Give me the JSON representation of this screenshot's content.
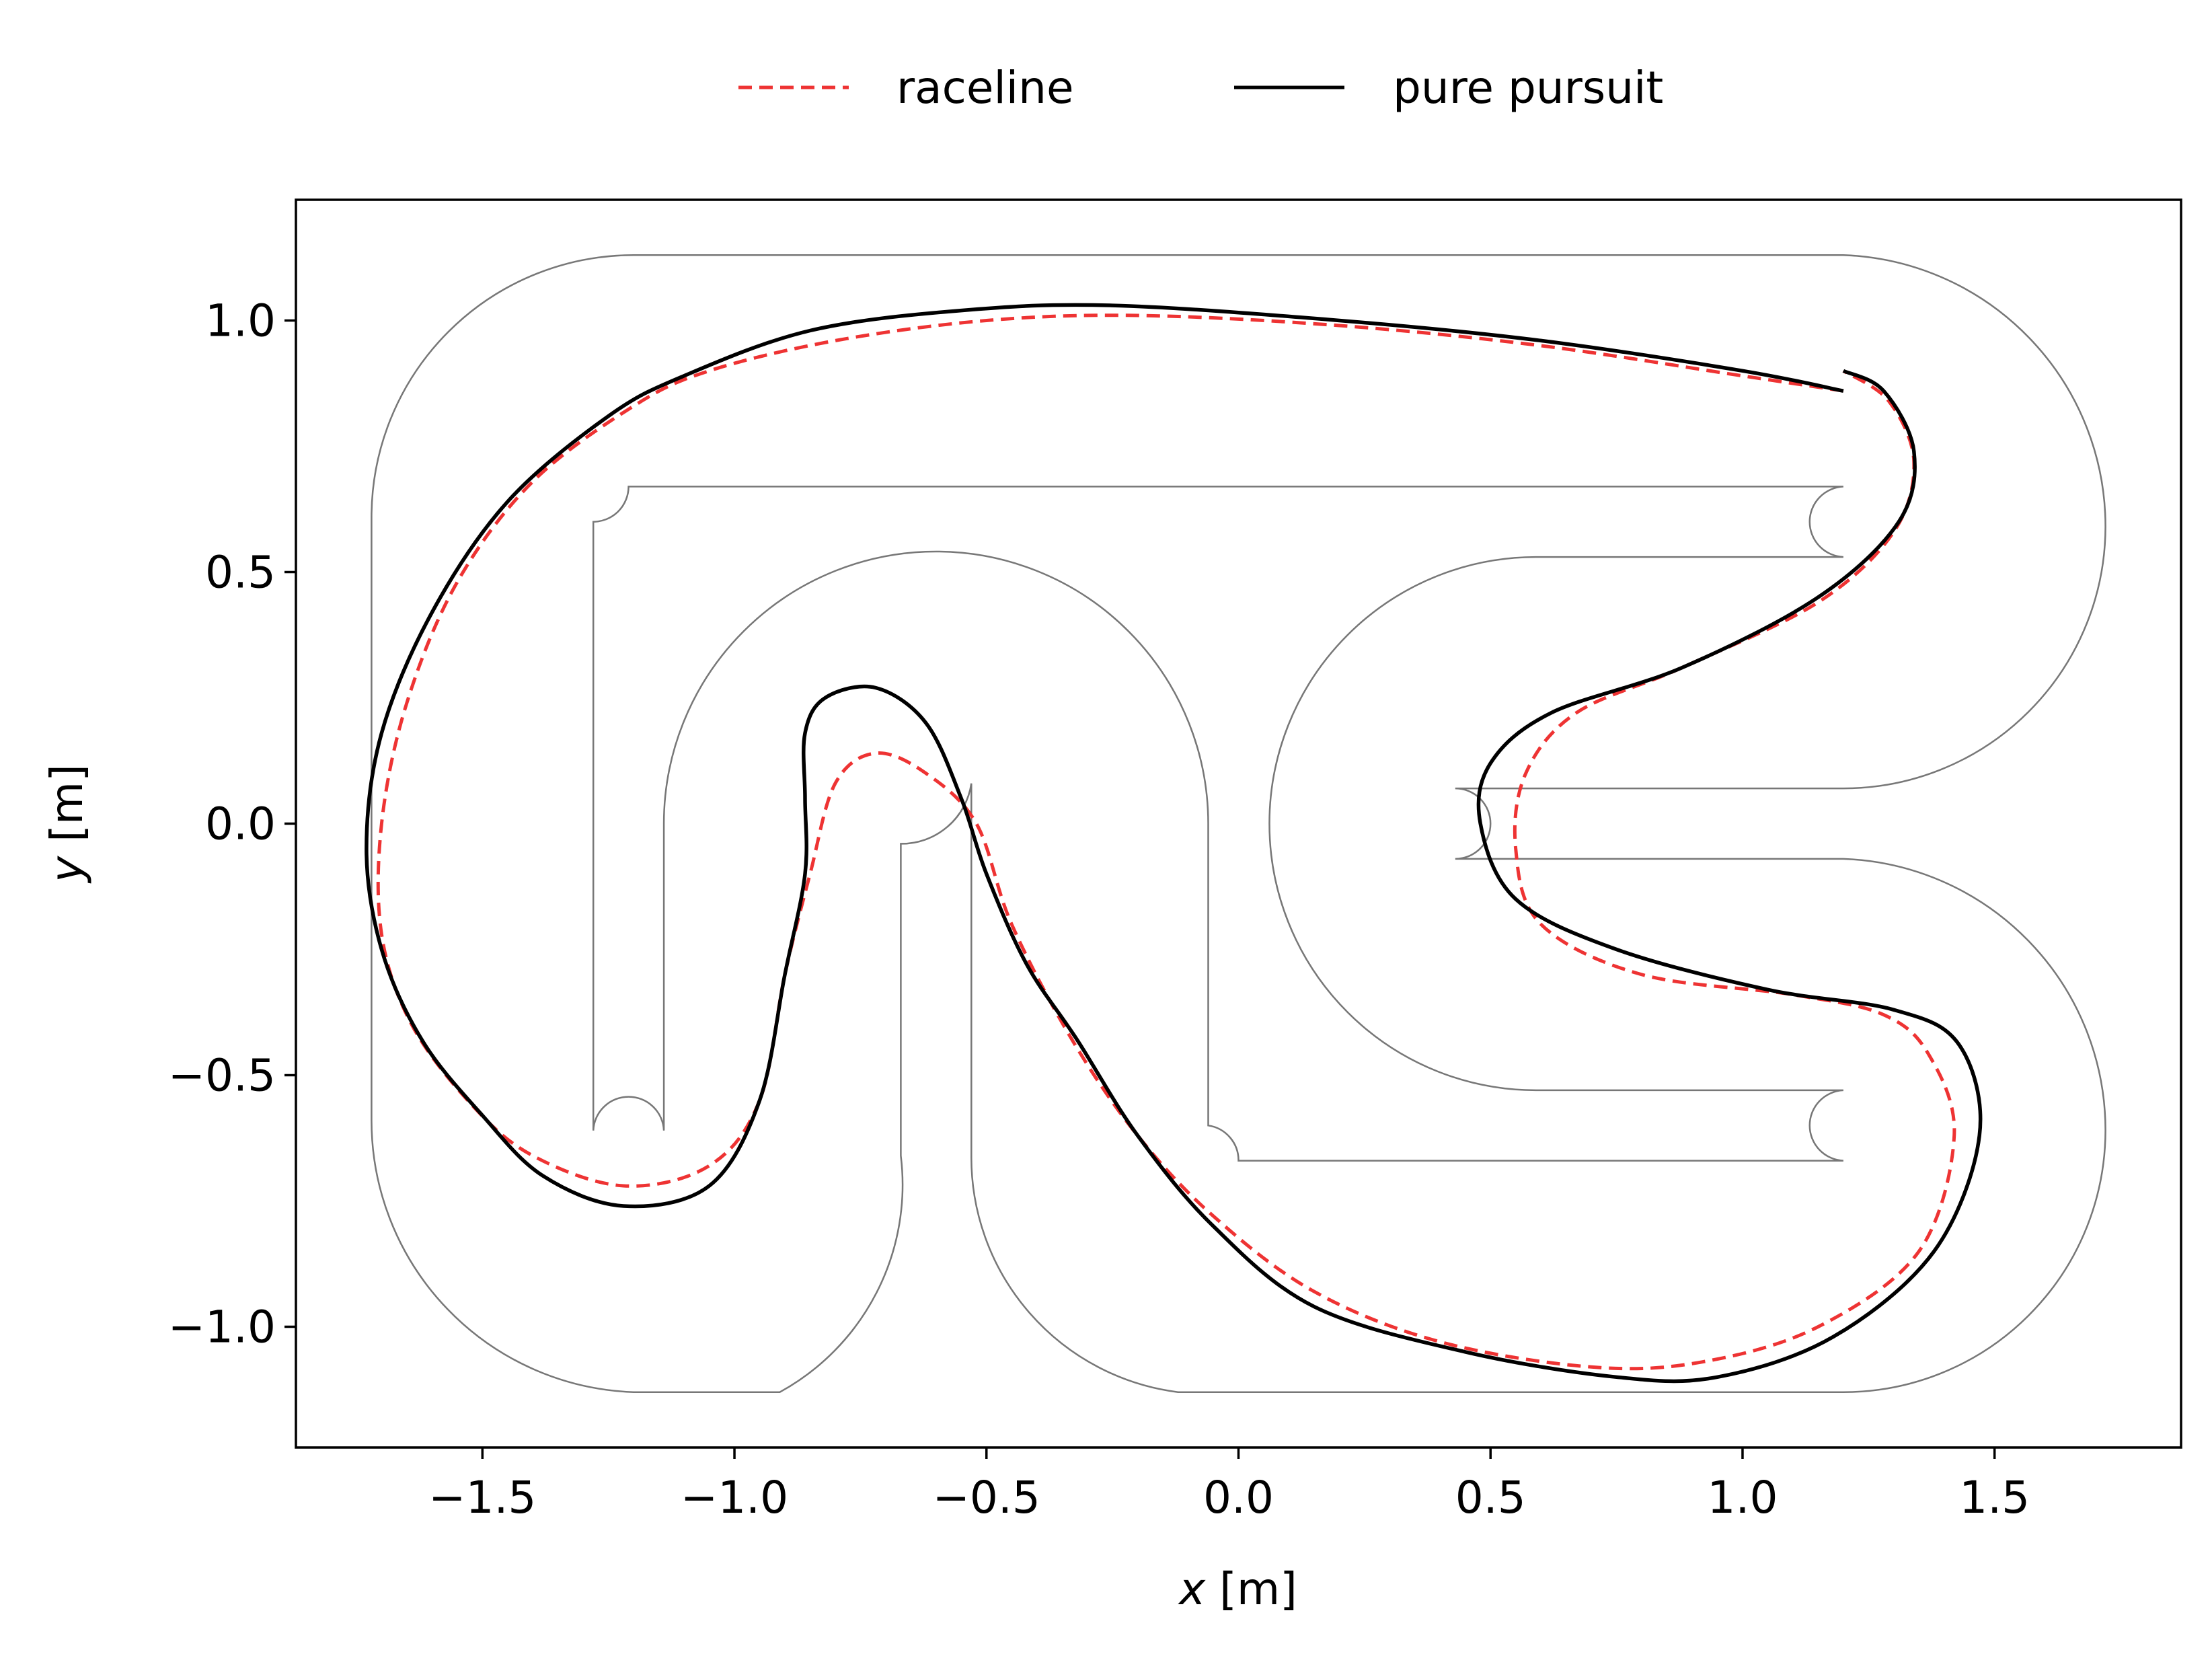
{
  "chart_data": {
    "type": "line",
    "title": "",
    "xlabel_var": "x",
    "xlabel_unit": " [m]",
    "ylabel_var": "y",
    "ylabel_unit": " [m]",
    "xlim": [
      -1.87,
      1.87
    ],
    "ylim": [
      -1.24,
      1.24
    ],
    "xticks": [
      -1.5,
      -1.0,
      -0.5,
      0.0,
      0.5,
      1.0,
      1.5
    ],
    "xtick_labels": [
      "−1.5",
      "−1.0",
      "−0.5",
      "0.0",
      "0.5",
      "1.0",
      "1.5"
    ],
    "yticks": [
      -1.0,
      -0.5,
      0.0,
      0.5,
      1.0
    ],
    "ytick_labels": [
      "−1.0",
      "−0.5",
      "0.0",
      "0.5",
      "1.0"
    ],
    "grid": false,
    "legend_position": "top-center",
    "series": [
      {
        "name": "raceline",
        "style": "dashed",
        "color": "#ee3333",
        "points": [
          [
            1.2,
            0.86
          ],
          [
            1.0,
            0.89
          ],
          [
            0.6,
            0.95
          ],
          [
            0.2,
            0.99
          ],
          [
            -0.2,
            1.01
          ],
          [
            -0.5,
            1.0
          ],
          [
            -0.8,
            0.96
          ],
          [
            -1.05,
            0.9
          ],
          [
            -1.2,
            0.83
          ],
          [
            -1.4,
            0.68
          ],
          [
            -1.55,
            0.48
          ],
          [
            -1.65,
            0.24
          ],
          [
            -1.7,
            0.0
          ],
          [
            -1.7,
            -0.22
          ],
          [
            -1.64,
            -0.4
          ],
          [
            -1.52,
            -0.56
          ],
          [
            -1.4,
            -0.66
          ],
          [
            -1.22,
            -0.72
          ],
          [
            -1.05,
            -0.68
          ],
          [
            -0.95,
            -0.55
          ],
          [
            -0.9,
            -0.3
          ],
          [
            -0.85,
            -0.1
          ],
          [
            -0.8,
            0.08
          ],
          [
            -0.72,
            0.14
          ],
          [
            -0.62,
            0.1
          ],
          [
            -0.52,
            0.0
          ],
          [
            -0.45,
            -0.2
          ],
          [
            -0.33,
            -0.43
          ],
          [
            -0.2,
            -0.62
          ],
          [
            -0.05,
            -0.78
          ],
          [
            0.15,
            -0.93
          ],
          [
            0.4,
            -1.03
          ],
          [
            0.7,
            -1.08
          ],
          [
            0.92,
            -1.07
          ],
          [
            1.15,
            -1.0
          ],
          [
            1.35,
            -0.85
          ],
          [
            1.42,
            -0.62
          ],
          [
            1.37,
            -0.46
          ],
          [
            1.28,
            -0.38
          ],
          [
            1.1,
            -0.34
          ],
          [
            0.8,
            -0.3
          ],
          [
            0.6,
            -0.2
          ],
          [
            0.55,
            -0.05
          ],
          [
            0.57,
            0.1
          ],
          [
            0.67,
            0.22
          ],
          [
            0.88,
            0.31
          ],
          [
            1.15,
            0.44
          ],
          [
            1.3,
            0.58
          ],
          [
            1.34,
            0.72
          ],
          [
            1.29,
            0.84
          ],
          [
            1.2,
            0.9
          ]
        ]
      },
      {
        "name": "pure pursuit",
        "style": "solid",
        "color": "#000000",
        "points": [
          [
            1.2,
            0.86
          ],
          [
            1.0,
            0.9
          ],
          [
            0.6,
            0.96
          ],
          [
            0.2,
            1.0
          ],
          [
            -0.25,
            1.03
          ],
          [
            -0.55,
            1.02
          ],
          [
            -0.85,
            0.98
          ],
          [
            -1.1,
            0.89
          ],
          [
            -1.25,
            0.81
          ],
          [
            -1.45,
            0.64
          ],
          [
            -1.6,
            0.42
          ],
          [
            -1.7,
            0.18
          ],
          [
            -1.73,
            -0.05
          ],
          [
            -1.7,
            -0.25
          ],
          [
            -1.62,
            -0.43
          ],
          [
            -1.5,
            -0.58
          ],
          [
            -1.38,
            -0.7
          ],
          [
            -1.22,
            -0.76
          ],
          [
            -1.05,
            -0.72
          ],
          [
            -0.95,
            -0.55
          ],
          [
            -0.9,
            -0.3
          ],
          [
            -0.86,
            -0.1
          ],
          [
            -0.86,
            0.05
          ],
          [
            -0.86,
            0.18
          ],
          [
            -0.82,
            0.25
          ],
          [
            -0.72,
            0.27
          ],
          [
            -0.62,
            0.2
          ],
          [
            -0.55,
            0.05
          ],
          [
            -0.5,
            -0.1
          ],
          [
            -0.42,
            -0.28
          ],
          [
            -0.32,
            -0.43
          ],
          [
            -0.2,
            -0.62
          ],
          [
            -0.05,
            -0.8
          ],
          [
            0.15,
            -0.96
          ],
          [
            0.45,
            -1.05
          ],
          [
            0.75,
            -1.1
          ],
          [
            0.95,
            -1.1
          ],
          [
            1.18,
            -1.02
          ],
          [
            1.38,
            -0.85
          ],
          [
            1.47,
            -0.62
          ],
          [
            1.43,
            -0.44
          ],
          [
            1.3,
            -0.37
          ],
          [
            1.05,
            -0.33
          ],
          [
            0.75,
            -0.25
          ],
          [
            0.55,
            -0.15
          ],
          [
            0.48,
            0.0
          ],
          [
            0.5,
            0.12
          ],
          [
            0.62,
            0.22
          ],
          [
            0.88,
            0.31
          ],
          [
            1.15,
            0.45
          ],
          [
            1.31,
            0.6
          ],
          [
            1.34,
            0.74
          ],
          [
            1.28,
            0.86
          ],
          [
            1.2,
            0.9
          ]
        ]
      }
    ],
    "track": {
      "color": "#777777",
      "paths": [
        [
          [
            1.2,
            1.13
          ],
          [
            -1.2,
            1.13
          ],
          "arc",
          [
            -1.72,
            0.61
          ],
          [
            -1.72,
            -0.59
          ],
          "arc",
          [
            -1.2,
            -1.13
          ],
          [
            -0.91,
            -1.13
          ],
          "arc",
          [
            -0.67,
            -0.66
          ],
          [
            -0.67,
            -0.04
          ],
          "arc",
          [
            -0.53,
            0.08
          ],
          [
            -0.53,
            -0.66
          ],
          "arc",
          [
            -0.12,
            -1.13
          ],
          [
            1.2,
            -1.13
          ],
          "arc",
          [
            1.72,
            -0.61
          ],
          "arc",
          [
            1.2,
            -0.07
          ],
          [
            0.43,
            -0.07
          ],
          "arc",
          [
            0.43,
            0.07
          ],
          [
            1.2,
            0.07
          ],
          "arc",
          [
            1.72,
            0.59
          ],
          "arc",
          [
            1.2,
            1.13
          ]
        ],
        [
          [
            1.2,
            0.67
          ],
          [
            -1.21,
            0.67
          ],
          "arc",
          [
            -1.28,
            0.6
          ],
          [
            -1.28,
            -0.61
          ],
          "arc",
          [
            -1.14,
            -0.61
          ],
          [
            -1.14,
            0.0
          ],
          "arc",
          [
            -0.06,
            0.0
          ],
          [
            -0.06,
            -0.6
          ],
          "arc",
          [
            0.0,
            -0.67
          ],
          [
            1.2,
            -0.67
          ],
          "arc",
          [
            1.2,
            -0.53
          ],
          [
            0.59,
            -0.53
          ],
          "arc",
          [
            0.59,
            0.53
          ],
          [
            1.2,
            0.53
          ],
          "arc",
          [
            1.2,
            0.67
          ]
        ]
      ]
    }
  }
}
